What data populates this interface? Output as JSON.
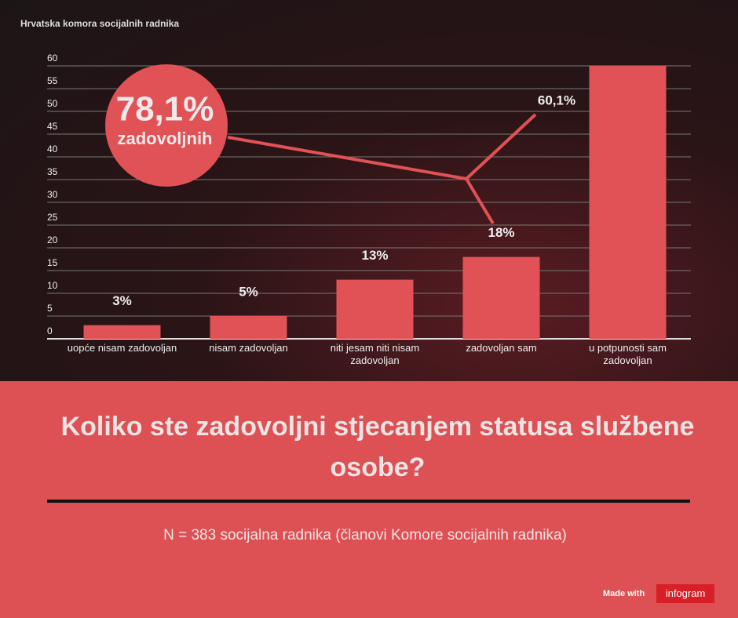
{
  "source": "Hrvatska komora socijalnih radnika",
  "chart_data": {
    "type": "bar",
    "categories": [
      "uopće nisam zadovoljan",
      "nisam zadovoljan",
      "niti jesam niti nisam zadovoljan",
      "zadovoljan sam",
      "u potpunosti sam zadovoljan"
    ],
    "values": [
      3,
      5,
      13,
      18,
      60.1
    ],
    "value_labels": [
      "3%",
      "5%",
      "13%",
      "18%",
      "60,1%"
    ],
    "color": "#e05255",
    "ylim": [
      0,
      60
    ],
    "yticks": [
      0,
      5,
      10,
      15,
      20,
      25,
      30,
      35,
      40,
      45,
      50,
      55,
      60
    ],
    "grid": true,
    "annotation": {
      "big": "78,1%",
      "small": "zadovoljnih"
    }
  },
  "title": "Koliko ste zadovoljni stjecanjem statusa službene osobe?",
  "subtitle": "N = 383 socijalna radnika (članovi Komore socijalnih radnika)",
  "footer": {
    "made_with": "Made with",
    "brand": "infogram"
  }
}
